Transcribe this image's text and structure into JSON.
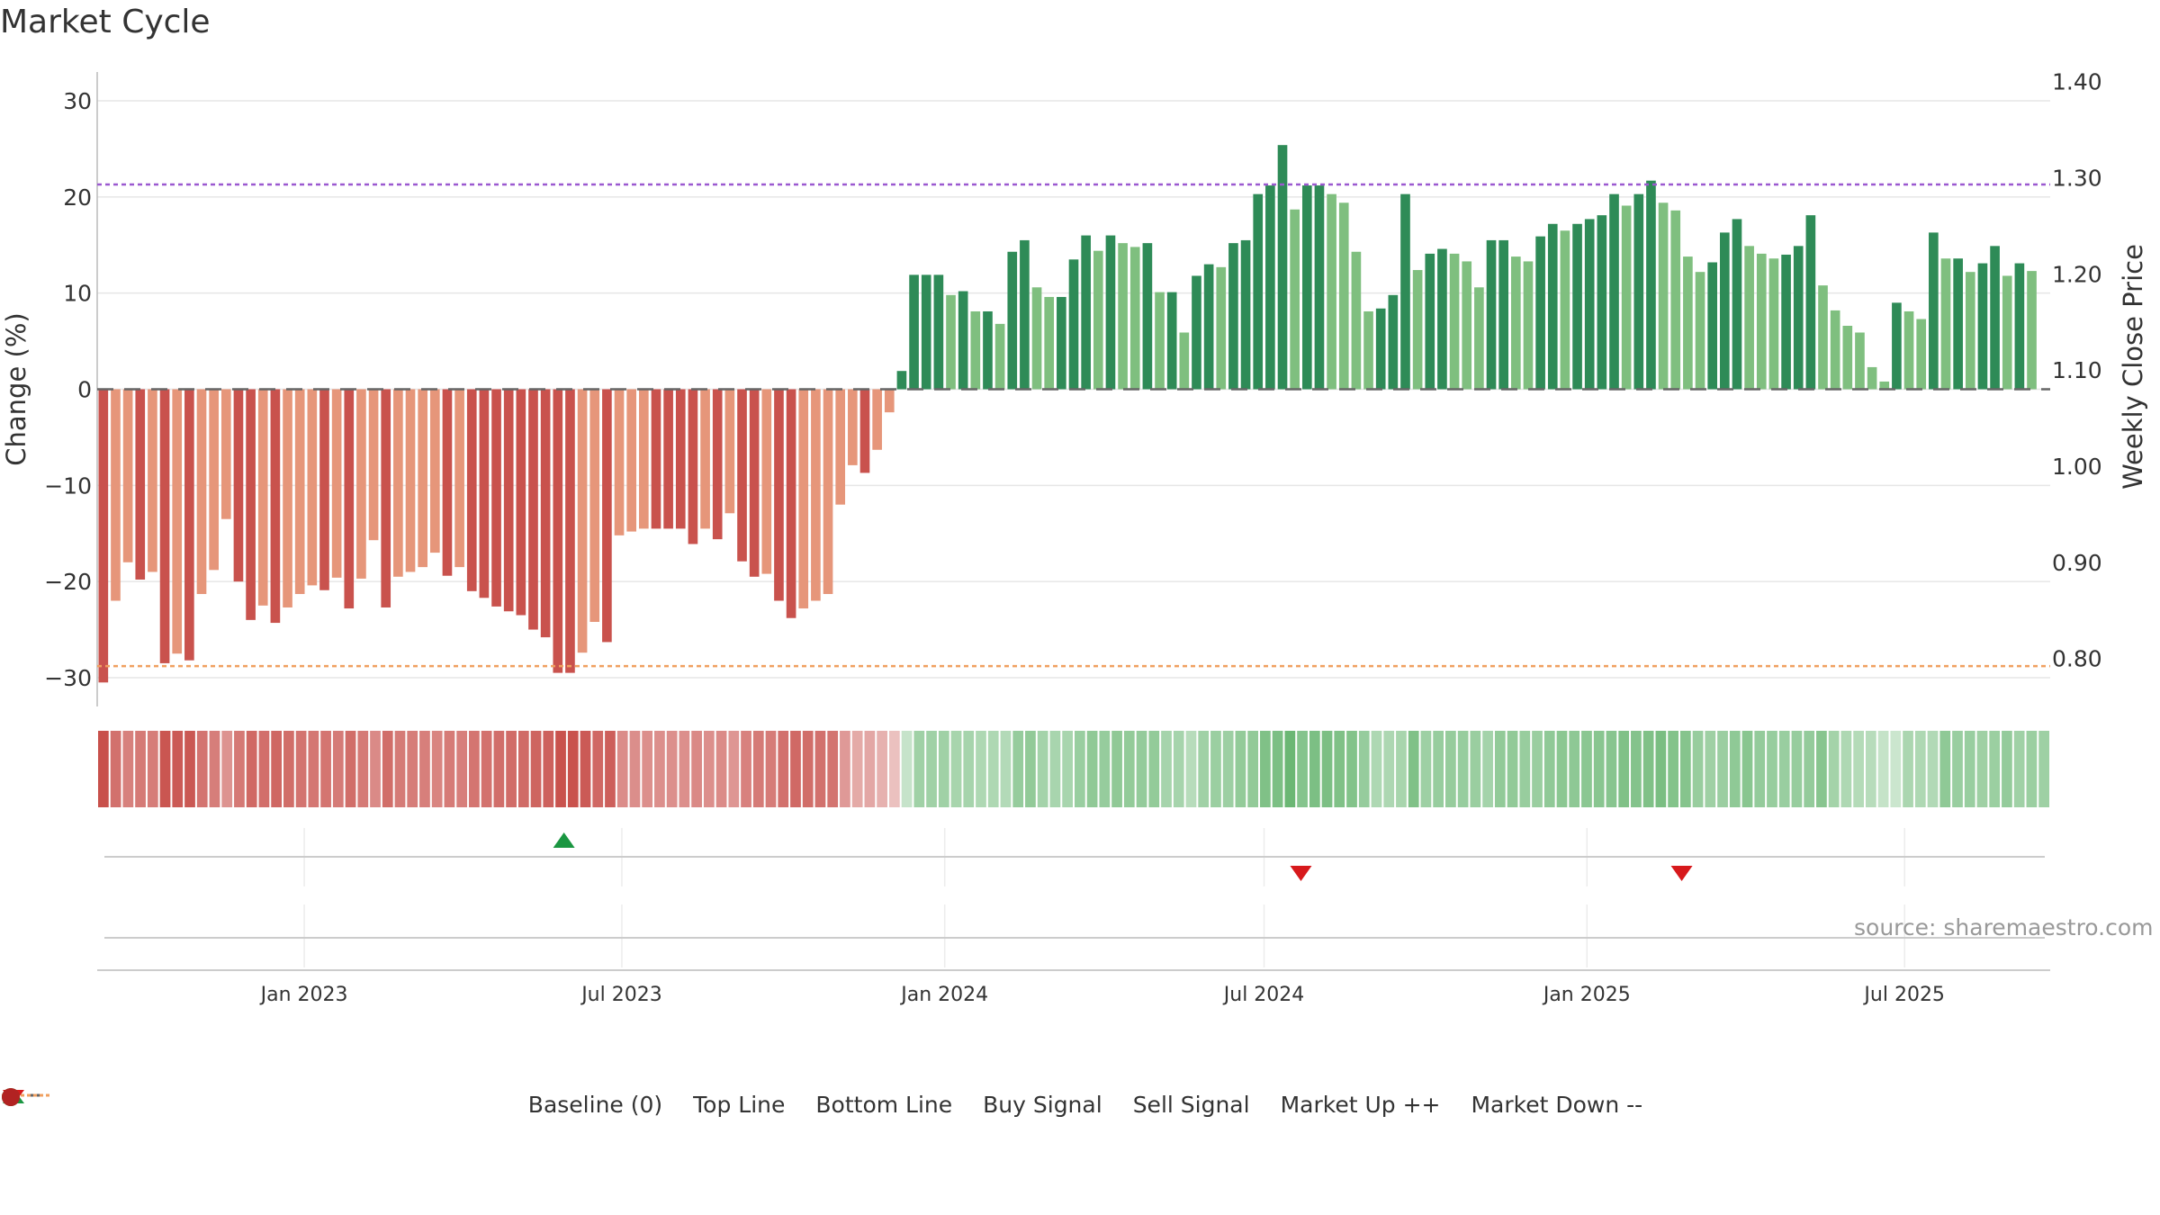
{
  "title": "Market Cycle",
  "source": "source: sharemaestro.com",
  "colors": {
    "down_dark": "#c9524d",
    "down_light": "#e6967a",
    "up_dark": "#2e8b57",
    "up_light": "#7fbf7f",
    "top_line": "#9b59d0",
    "bottom_line": "#f0a060",
    "buy": "#1a9641",
    "sell": "#d7191c",
    "market_up": "#1f8a2a",
    "market_down": "#b22222",
    "baseline": "#666666"
  },
  "legend": [
    {
      "label": "Baseline (0)",
      "icon": "dash-line-icon",
      "name": "legend-baseline"
    },
    {
      "label": "Top Line",
      "icon": "dotted-purple-line-icon",
      "name": "legend-top-line"
    },
    {
      "label": "Bottom Line",
      "icon": "dotted-orange-line-icon",
      "name": "legend-bottom-line"
    },
    {
      "label": "Buy Signal",
      "icon": "triangle-up-icon",
      "name": "legend-buy-signal"
    },
    {
      "label": "Sell Signal",
      "icon": "triangle-down-icon",
      "name": "legend-sell-signal"
    },
    {
      "label": "Market Up ++",
      "icon": "green-dot-icon",
      "name": "legend-market-up"
    },
    {
      "label": "Market Down --",
      "icon": "red-dot-icon",
      "name": "legend-market-down"
    }
  ],
  "chart_data": {
    "type": "bar",
    "ylabel": "Change (%)",
    "y2label": "Weekly Close Price",
    "ylim": [
      -33,
      33
    ],
    "yticks": [
      30,
      20,
      10,
      0,
      -10,
      -20,
      -30
    ],
    "ytick_labels": [
      "30",
      "20",
      "10",
      "0",
      "−10",
      "−20",
      "−30"
    ],
    "y2lim": [
      0.75,
      1.41
    ],
    "y2ticks": [
      1.4,
      1.3,
      1.2,
      1.1,
      1.0,
      0.9,
      0.8
    ],
    "y2tick_labels": [
      "1.40",
      "1.30",
      "1.20",
      "1.10",
      "1.00",
      "0.90",
      "0.80"
    ],
    "top_line": 21.3,
    "bottom_line": -28.8,
    "baseline": 0,
    "xlim": [
      "2022-09-05",
      "2025-09-22"
    ],
    "xticks": [
      "2023-01-01",
      "2023-07-01",
      "2024-01-01",
      "2024-07-01",
      "2025-01-01",
      "2025-07-01"
    ],
    "xtick_labels": [
      "Jan 2023",
      "Jul 2023",
      "Jan 2024",
      "Jul 2024",
      "Jan 2025",
      "Jul 2025"
    ],
    "x_start": "2022-09-05",
    "x_step_days": 7,
    "values": [
      -30.5,
      -22,
      -18,
      -19.8,
      -19,
      -28.5,
      -27.5,
      -28.2,
      -21.3,
      -18.8,
      -13.5,
      -20,
      -24,
      -22.5,
      -24.3,
      -22.7,
      -21.3,
      -20.4,
      -20.9,
      -19.6,
      -22.8,
      -19.7,
      -15.7,
      -22.7,
      -19.5,
      -19,
      -18.5,
      -17,
      -19.4,
      -18.5,
      -21,
      -21.7,
      -22.6,
      -23.1,
      -23.5,
      -25,
      -25.8,
      -29.5,
      -29.5,
      -27.4,
      -24.2,
      -26.3,
      -15.2,
      -14.8,
      -14.5,
      -14.5,
      -14.5,
      -14.5,
      -16.1,
      -14.5,
      -15.6,
      -12.9,
      -17.9,
      -19.5,
      -19.2,
      -22,
      -23.8,
      -22.8,
      -22,
      -21.3,
      -12,
      -7.9,
      -8.7,
      -6.3,
      -2.4,
      1.9,
      11.9,
      11.9,
      11.9,
      9.8,
      10.2,
      8.1,
      8.1,
      6.8,
      14.3,
      15.5,
      10.6,
      9.6,
      9.6,
      13.5,
      16,
      14.4,
      16,
      15.2,
      14.8,
      15.2,
      10.1,
      10.1,
      5.9,
      11.8,
      13,
      12.7,
      15.2,
      15.5,
      20.3,
      21.2,
      25.4,
      18.7,
      21.2,
      21.2,
      20.3,
      19.4,
      14.3,
      8.1,
      8.4,
      9.8,
      20.3,
      12.4,
      14.1,
      14.6,
      14.1,
      13.3,
      10.6,
      15.5,
      15.5,
      13.8,
      13.3,
      15.9,
      17.2,
      16.5,
      17.2,
      17.7,
      18.1,
      20.3,
      19.1,
      20.3,
      21.7,
      19.4,
      18.6,
      13.8,
      12.2,
      13.2,
      16.3,
      17.7,
      14.9,
      14.1,
      13.6,
      14,
      14.9,
      18.1,
      10.8,
      8.2,
      6.6,
      5.9,
      2.3,
      0.8,
      9,
      8.1,
      7.3,
      16.3,
      13.6,
      13.6,
      12.2,
      13.1,
      14.9,
      11.8,
      13.1,
      12.3
    ],
    "buy_signals": [
      "2023-05-29"
    ],
    "sell_signals": [
      "2024-07-22",
      "2025-02-24"
    ]
  }
}
